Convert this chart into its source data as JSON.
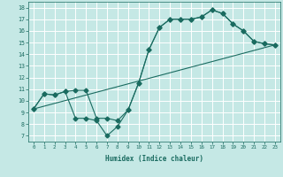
{
  "xlabel": "Humidex (Indice chaleur)",
  "ylabel": "",
  "bg_color": "#c5e8e5",
  "grid_color": "#ffffff",
  "line_color": "#1a6b60",
  "xlim": [
    -0.5,
    23.5
  ],
  "ylim": [
    6.5,
    18.5
  ],
  "xticks": [
    0,
    1,
    2,
    3,
    4,
    5,
    6,
    7,
    8,
    9,
    10,
    11,
    12,
    13,
    14,
    15,
    16,
    17,
    18,
    19,
    20,
    21,
    22,
    23
  ],
  "yticks": [
    7,
    8,
    9,
    10,
    11,
    12,
    13,
    14,
    15,
    16,
    17,
    18
  ],
  "line1_x": [
    0,
    1,
    2,
    3,
    4,
    5,
    6,
    7,
    8,
    9,
    10,
    11,
    12,
    13,
    14,
    15,
    16,
    17,
    18,
    19,
    20,
    21,
    22,
    23
  ],
  "line1_y": [
    9.3,
    10.6,
    10.5,
    10.8,
    10.9,
    10.9,
    8.5,
    8.5,
    8.3,
    9.2,
    11.5,
    14.4,
    16.3,
    17.0,
    17.0,
    17.0,
    17.2,
    17.8,
    17.5,
    16.6,
    16.0,
    15.1,
    14.9,
    14.8
  ],
  "line2_x": [
    0,
    1,
    2,
    3,
    4,
    5,
    6,
    7,
    8,
    9,
    10,
    11,
    12,
    13,
    14,
    15,
    16,
    17,
    18,
    19,
    20,
    21,
    22,
    23
  ],
  "line2_y": [
    9.3,
    10.6,
    10.5,
    10.8,
    8.5,
    8.5,
    8.3,
    7.0,
    7.8,
    9.2,
    11.5,
    14.4,
    16.3,
    17.0,
    17.0,
    17.0,
    17.2,
    17.8,
    17.5,
    16.6,
    16.0,
    15.1,
    14.9,
    14.8
  ],
  "line3_x": [
    0,
    23
  ],
  "line3_y": [
    9.3,
    14.8
  ]
}
